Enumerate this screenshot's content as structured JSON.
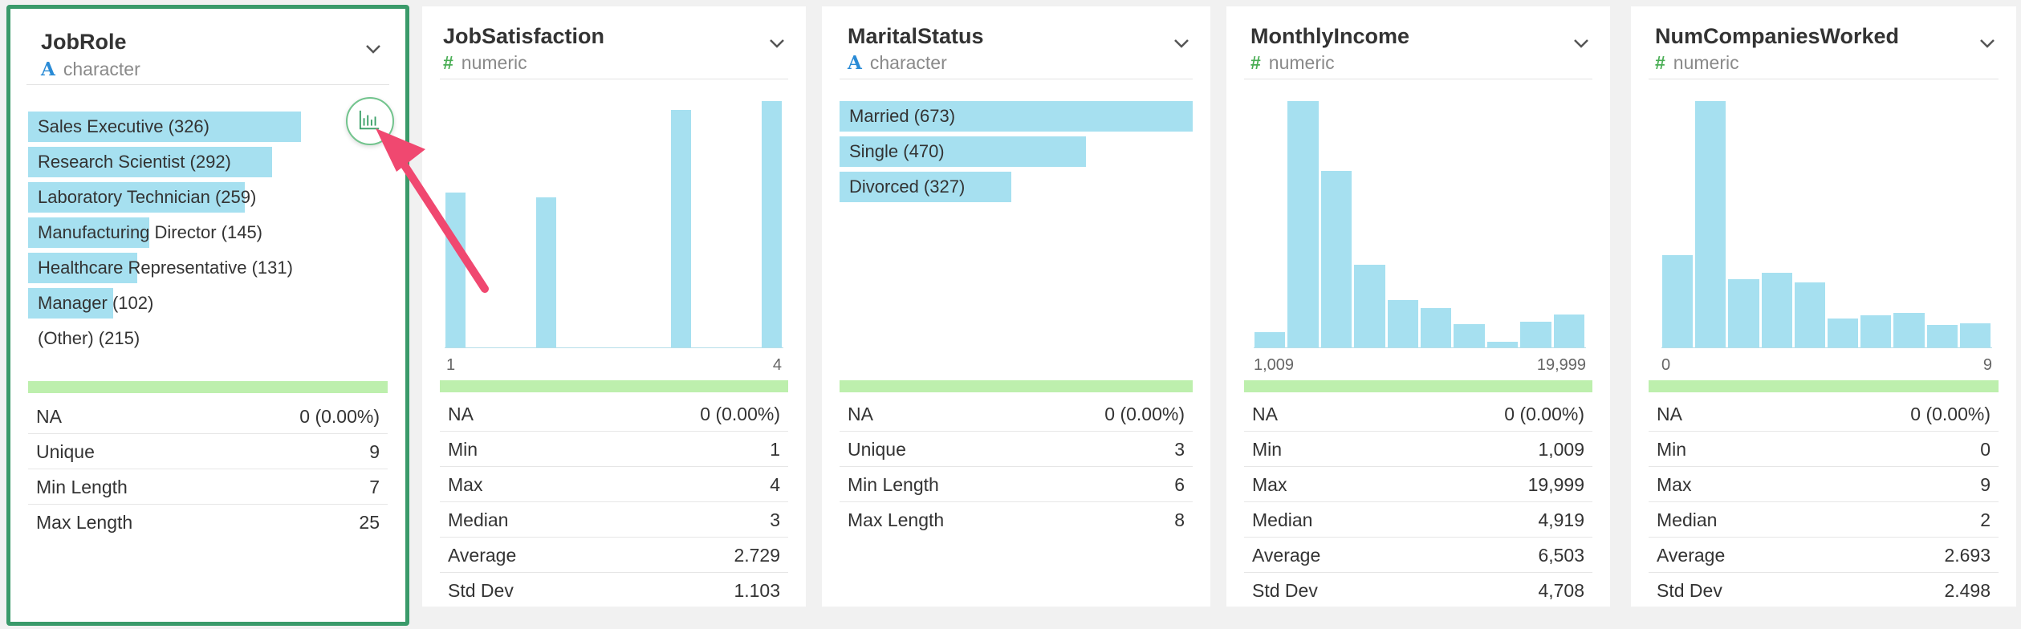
{
  "columns": [
    {
      "name": "JobRole",
      "type_icon": "A",
      "type": "character",
      "bars": [
        {
          "label": "Sales Executive (326)",
          "count": 326
        },
        {
          "label": "Research Scientist (292)",
          "count": 292
        },
        {
          "label": "Laboratory Technician (259)",
          "count": 259
        },
        {
          "label": "Manufacturing Director (145)",
          "count": 145
        },
        {
          "label": "Healthcare Representative (131)",
          "count": 131
        },
        {
          "label": "Manager (102)",
          "count": 102
        },
        {
          "label": "(Other) (215)",
          "count": 215
        }
      ],
      "stats": [
        {
          "label": "NA",
          "value": "0 (0.00%)"
        },
        {
          "label": "Unique",
          "value": "9"
        },
        {
          "label": "Min Length",
          "value": "7"
        },
        {
          "label": "Max Length",
          "value": "25"
        }
      ]
    },
    {
      "name": "JobSatisfaction",
      "type_icon": "#",
      "type": "numeric",
      "axis_min": "1",
      "axis_max": "4",
      "stats": [
        {
          "label": "NA",
          "value": "0 (0.00%)"
        },
        {
          "label": "Min",
          "value": "1"
        },
        {
          "label": "Max",
          "value": "4"
        },
        {
          "label": "Median",
          "value": "3"
        },
        {
          "label": "Average",
          "value": "2.729"
        },
        {
          "label": "Std Dev",
          "value": "1.103"
        }
      ]
    },
    {
      "name": "MaritalStatus",
      "type_icon": "A",
      "type": "character",
      "bars": [
        {
          "label": "Married (673)",
          "count": 673
        },
        {
          "label": "Single (470)",
          "count": 470
        },
        {
          "label": "Divorced (327)",
          "count": 327
        }
      ],
      "stats": [
        {
          "label": "NA",
          "value": "0 (0.00%)"
        },
        {
          "label": "Unique",
          "value": "3"
        },
        {
          "label": "Min Length",
          "value": "6"
        },
        {
          "label": "Max Length",
          "value": "8"
        }
      ]
    },
    {
      "name": "MonthlyIncome",
      "type_icon": "#",
      "type": "numeric",
      "axis_min": "1,009",
      "axis_max": "19,999",
      "stats": [
        {
          "label": "NA",
          "value": "0 (0.00%)"
        },
        {
          "label": "Min",
          "value": "1,009"
        },
        {
          "label": "Max",
          "value": "19,999"
        },
        {
          "label": "Median",
          "value": "4,919"
        },
        {
          "label": "Average",
          "value": "6,503"
        },
        {
          "label": "Std Dev",
          "value": "4,708"
        }
      ]
    },
    {
      "name": "NumCompaniesWorked",
      "type_icon": "#",
      "type": "numeric",
      "axis_min": "0",
      "axis_max": "9",
      "stats": [
        {
          "label": "NA",
          "value": "0 (0.00%)"
        },
        {
          "label": "Min",
          "value": "0"
        },
        {
          "label": "Max",
          "value": "9"
        },
        {
          "label": "Median",
          "value": "2"
        },
        {
          "label": "Average",
          "value": "2.693"
        },
        {
          "label": "Std Dev",
          "value": "2.498"
        }
      ]
    }
  ],
  "chart_data": [
    {
      "type": "bar",
      "categories": [
        "Sales Executive",
        "Research Scientist",
        "Laboratory Technician",
        "Manufacturing Director",
        "Healthcare Representative",
        "Manager",
        "(Other)"
      ],
      "values": [
        326,
        292,
        259,
        145,
        131,
        102,
        215
      ],
      "orientation": "horizontal"
    },
    {
      "type": "bar",
      "x_range": [
        1,
        4
      ],
      "bins": 15,
      "values": [
        289,
        0,
        0,
        0,
        280,
        0,
        0,
        0,
        0,
        0,
        442,
        0,
        0,
        0,
        459
      ]
    },
    {
      "type": "bar",
      "categories": [
        "Married",
        "Single",
        "Divorced"
      ],
      "values": [
        673,
        470,
        327
      ],
      "orientation": "horizontal"
    },
    {
      "type": "bar",
      "x_range": [
        1009,
        19999
      ],
      "bins": 10,
      "values": [
        30,
        460,
        330,
        155,
        90,
        75,
        45,
        12,
        50,
        62
      ]
    },
    {
      "type": "bar",
      "x_range": [
        0,
        9
      ],
      "bins": 10,
      "values": [
        197,
        521,
        146,
        159,
        139,
        63,
        70,
        74,
        49,
        52
      ]
    }
  ],
  "colors": {
    "bar": "#a6e0f0",
    "na_bar": "#bdefad",
    "selected_border": "#3a9a6a",
    "arrow": "#f04870",
    "character_icon": "#2a8bd6",
    "numeric_icon": "#4aae55"
  },
  "icons": {
    "chevron": "chevron-down-icon",
    "chart_button": "bar-chart-icon"
  }
}
